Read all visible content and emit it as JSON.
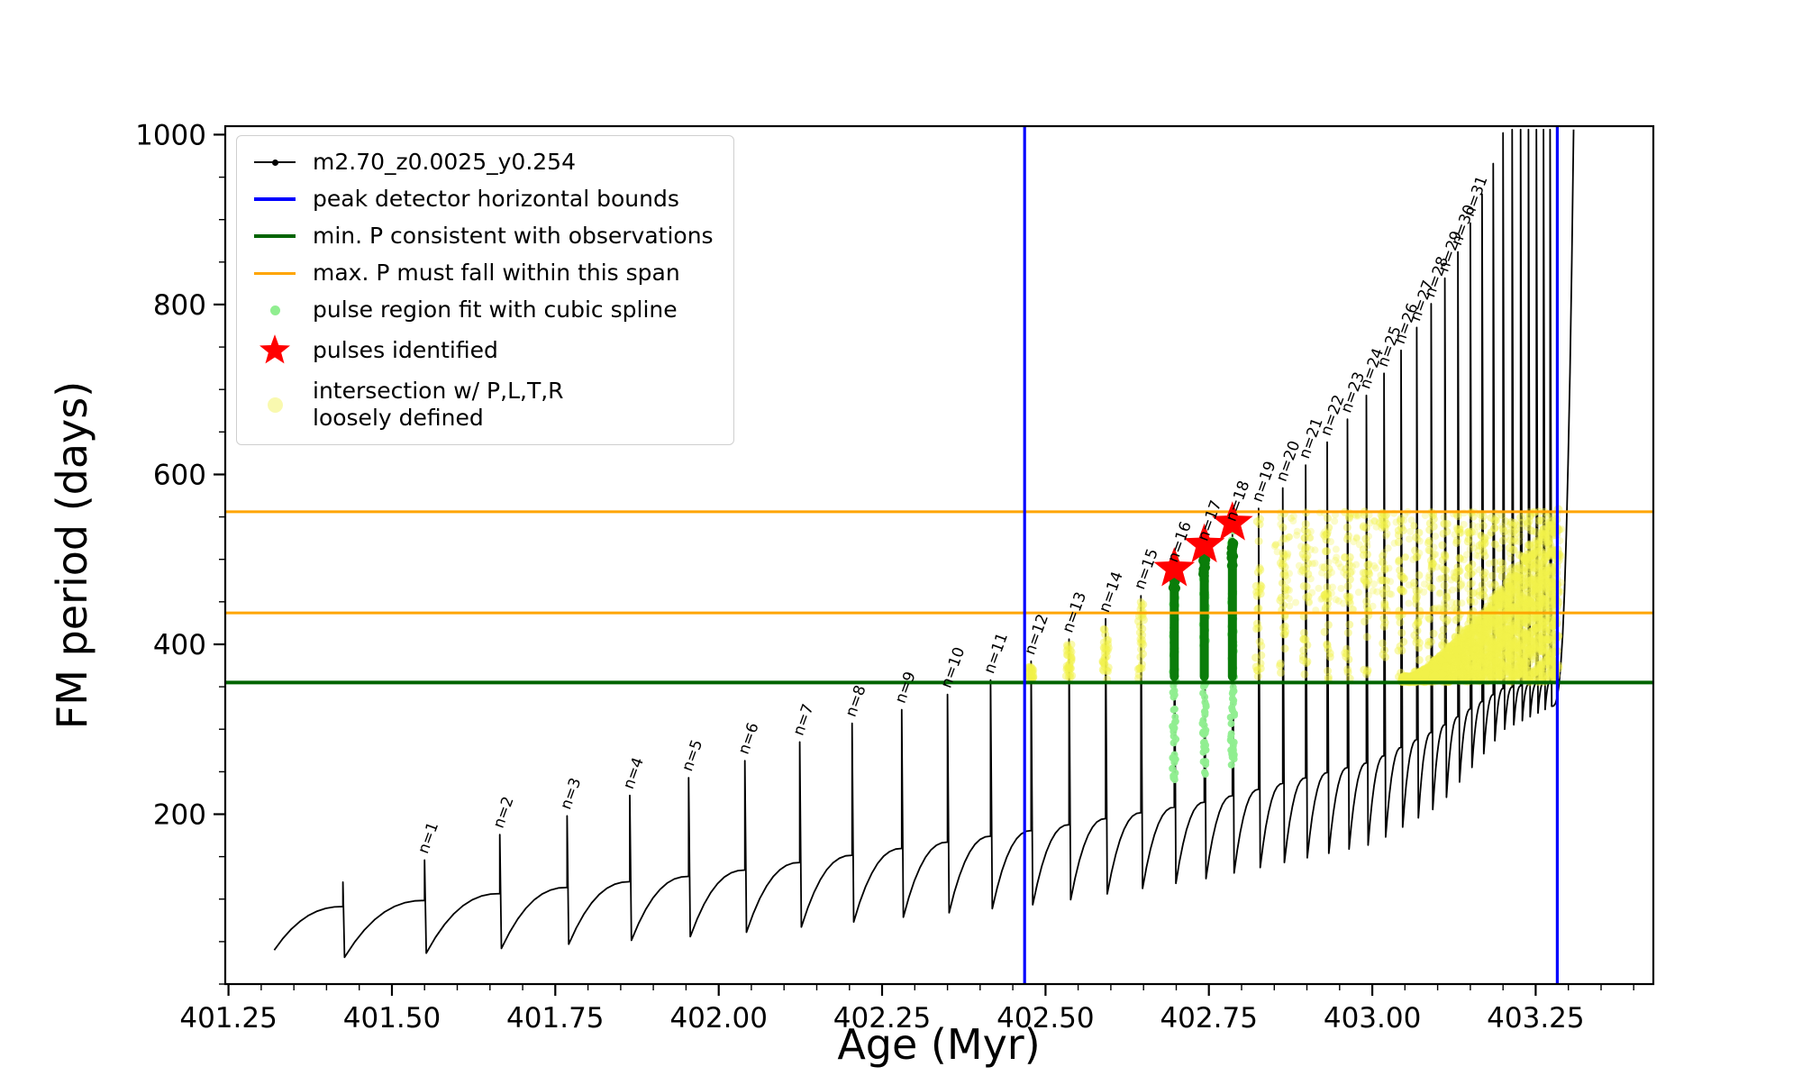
{
  "legend": {
    "items": [
      {
        "label": "m2.70_z0.0025_y0.254",
        "marker": "line-dot",
        "color": "#000000"
      },
      {
        "label": "peak detector horizontal bounds",
        "marker": "line",
        "color": "#0000ff"
      },
      {
        "label": "min. P consistent with observations",
        "marker": "line",
        "color": "#006400"
      },
      {
        "label": "max. P must fall within this span",
        "marker": "line",
        "color": "#ffa500"
      },
      {
        "label": "pulse region fit with cubic spline",
        "marker": "dot",
        "color": "#90ee90"
      },
      {
        "label": "pulses identified",
        "marker": "star",
        "color": "#ff0000"
      },
      {
        "label": "intersection w/ P,L,T,R\nloosely defined",
        "marker": "dot",
        "color": "#f5f57a"
      }
    ]
  },
  "chart_data": {
    "type": "line",
    "title": "",
    "series_name": "m2.70_z0.0025_y0.254",
    "xlabel": "Age (Myr)",
    "ylabel": "FM period (days)",
    "xlim": [
      401.245,
      403.43
    ],
    "ylim": [
      0,
      1010
    ],
    "grid": false,
    "legend_position": "upper left",
    "x_ticks": {
      "values": [
        401.25,
        401.5,
        401.75,
        402.0,
        402.25,
        402.5,
        402.75,
        403.0,
        403.25
      ],
      "labels": [
        "401.25",
        "401.50",
        "401.75",
        "402.00",
        "402.25",
        "402.50",
        "402.75",
        "403.00",
        "403.25"
      ],
      "minor_step": 0.05
    },
    "y_ticks": {
      "values": [
        200,
        400,
        600,
        800,
        1000
      ],
      "labels": [
        "200",
        "400",
        "600",
        "800",
        "1000"
      ],
      "minor_step": 50
    },
    "colors": {
      "series": "#000000",
      "blue": "#0000ff",
      "dark_green": "#006400",
      "bar_green": "#0a7d0a",
      "light_green": "#90ee90",
      "orange": "#ffa500",
      "red": "#ff0000",
      "yellow": "#f2f24a"
    },
    "guides": {
      "blue_vertical_x": [
        402.468,
        403.283
      ],
      "green_horizontal_y": 355,
      "orange_horizontal_y": [
        437,
        556
      ]
    },
    "curve": {
      "start": {
        "x": 401.32,
        "y": 40
      },
      "tail": {
        "x": 403.308,
        "y": 1006
      },
      "shoulder_anchors": [
        [
          401.32,
          86
        ],
        [
          401.5,
          95
        ],
        [
          402.0,
          130
        ],
        [
          402.5,
          183
        ],
        [
          402.75,
          215
        ],
        [
          403.0,
          262
        ],
        [
          403.1,
          300
        ],
        [
          403.2,
          348
        ],
        [
          403.32,
          362
        ]
      ],
      "dip_anchors": [
        [
          401.32,
          28
        ],
        [
          401.5,
          34
        ],
        [
          402.0,
          58
        ],
        [
          402.5,
          95
        ],
        [
          402.75,
          125
        ],
        [
          403.0,
          165
        ],
        [
          403.1,
          210
        ],
        [
          403.2,
          300
        ],
        [
          403.32,
          345
        ]
      ],
      "pulses": [
        {
          "x": 401.425,
          "peak": 120,
          "label": ""
        },
        {
          "x": 401.55,
          "peak": 146,
          "label": "n=1"
        },
        {
          "x": 401.665,
          "peak": 176,
          "label": "n=2"
        },
        {
          "x": 401.768,
          "peak": 198,
          "label": "n=3"
        },
        {
          "x": 401.864,
          "peak": 222,
          "label": "n=4"
        },
        {
          "x": 401.954,
          "peak": 243,
          "label": "n=5"
        },
        {
          "x": 402.04,
          "peak": 263,
          "label": "n=6"
        },
        {
          "x": 402.124,
          "peak": 285,
          "label": "n=7"
        },
        {
          "x": 402.204,
          "peak": 307,
          "label": "n=8"
        },
        {
          "x": 402.28,
          "peak": 323,
          "label": "n=9"
        },
        {
          "x": 402.35,
          "peak": 341,
          "label": "n=10"
        },
        {
          "x": 402.416,
          "peak": 358,
          "label": "n=11"
        },
        {
          "x": 402.478,
          "peak": 380,
          "label": "n=12"
        },
        {
          "x": 402.536,
          "peak": 406,
          "label": "n=13"
        },
        {
          "x": 402.592,
          "peak": 430,
          "label": "n=14"
        },
        {
          "x": 402.646,
          "peak": 457,
          "label": "n=15"
        },
        {
          "x": 402.697,
          "peak": 489,
          "label": "n=16"
        },
        {
          "x": 402.743,
          "peak": 514,
          "label": "n=17"
        },
        {
          "x": 402.786,
          "peak": 537,
          "label": "n=18"
        },
        {
          "x": 402.826,
          "peak": 560,
          "label": "n=19"
        },
        {
          "x": 402.863,
          "peak": 584,
          "label": "n=20"
        },
        {
          "x": 402.898,
          "peak": 611,
          "label": "n=21"
        },
        {
          "x": 402.931,
          "peak": 638,
          "label": "n=22"
        },
        {
          "x": 402.962,
          "peak": 665,
          "label": "n=23"
        },
        {
          "x": 402.991,
          "peak": 693,
          "label": "n=24"
        },
        {
          "x": 403.018,
          "peak": 719,
          "label": "n=25"
        },
        {
          "x": 403.044,
          "peak": 746,
          "label": "n=26"
        },
        {
          "x": 403.068,
          "peak": 773,
          "label": "n=27"
        },
        {
          "x": 403.09,
          "peak": 801,
          "label": "n=28"
        },
        {
          "x": 403.111,
          "peak": 831,
          "label": "n=29"
        },
        {
          "x": 403.131,
          "peak": 862,
          "label": "n=30"
        },
        {
          "x": 403.15,
          "peak": 896,
          "label": "n=31"
        },
        {
          "x": 403.168,
          "peak": 930,
          "label": ""
        },
        {
          "x": 403.185,
          "peak": 966,
          "label": ""
        },
        {
          "x": 403.2,
          "peak": 1002,
          "label": ""
        },
        {
          "x": 403.214,
          "peak": 1006,
          "label": ""
        },
        {
          "x": 403.227,
          "peak": 1006,
          "label": ""
        },
        {
          "x": 403.239,
          "peak": 1006,
          "label": ""
        },
        {
          "x": 403.251,
          "peak": 1006,
          "label": ""
        },
        {
          "x": 403.262,
          "peak": 1006,
          "label": ""
        },
        {
          "x": 403.272,
          "peak": 1006,
          "label": ""
        }
      ]
    },
    "spline_regions": [
      {
        "x": 402.697,
        "y_lo": 238,
        "y_hi": 505,
        "bar_lo": 362,
        "bar_hi": 492
      },
      {
        "x": 402.743,
        "y_lo": 243,
        "y_hi": 525,
        "bar_lo": 362,
        "bar_hi": 505
      },
      {
        "x": 402.786,
        "y_lo": 248,
        "y_hi": 545,
        "bar_lo": 362,
        "bar_hi": 520
      }
    ],
    "stars": [
      {
        "x": 402.697,
        "y": 489
      },
      {
        "x": 402.743,
        "y": 517
      },
      {
        "x": 402.786,
        "y": 543
      }
    ],
    "yellow_scatter": {
      "strip_x_range": [
        402.45,
        403.29
      ],
      "band_y": [
        358,
        557
      ],
      "wedge": {
        "x0": 403.045,
        "x1": 403.285,
        "y_base": 356,
        "top_at_x1": 560
      },
      "cloud": {
        "x": [
          402.85,
          403.29
        ],
        "y": [
          440,
          557
        ]
      }
    }
  }
}
